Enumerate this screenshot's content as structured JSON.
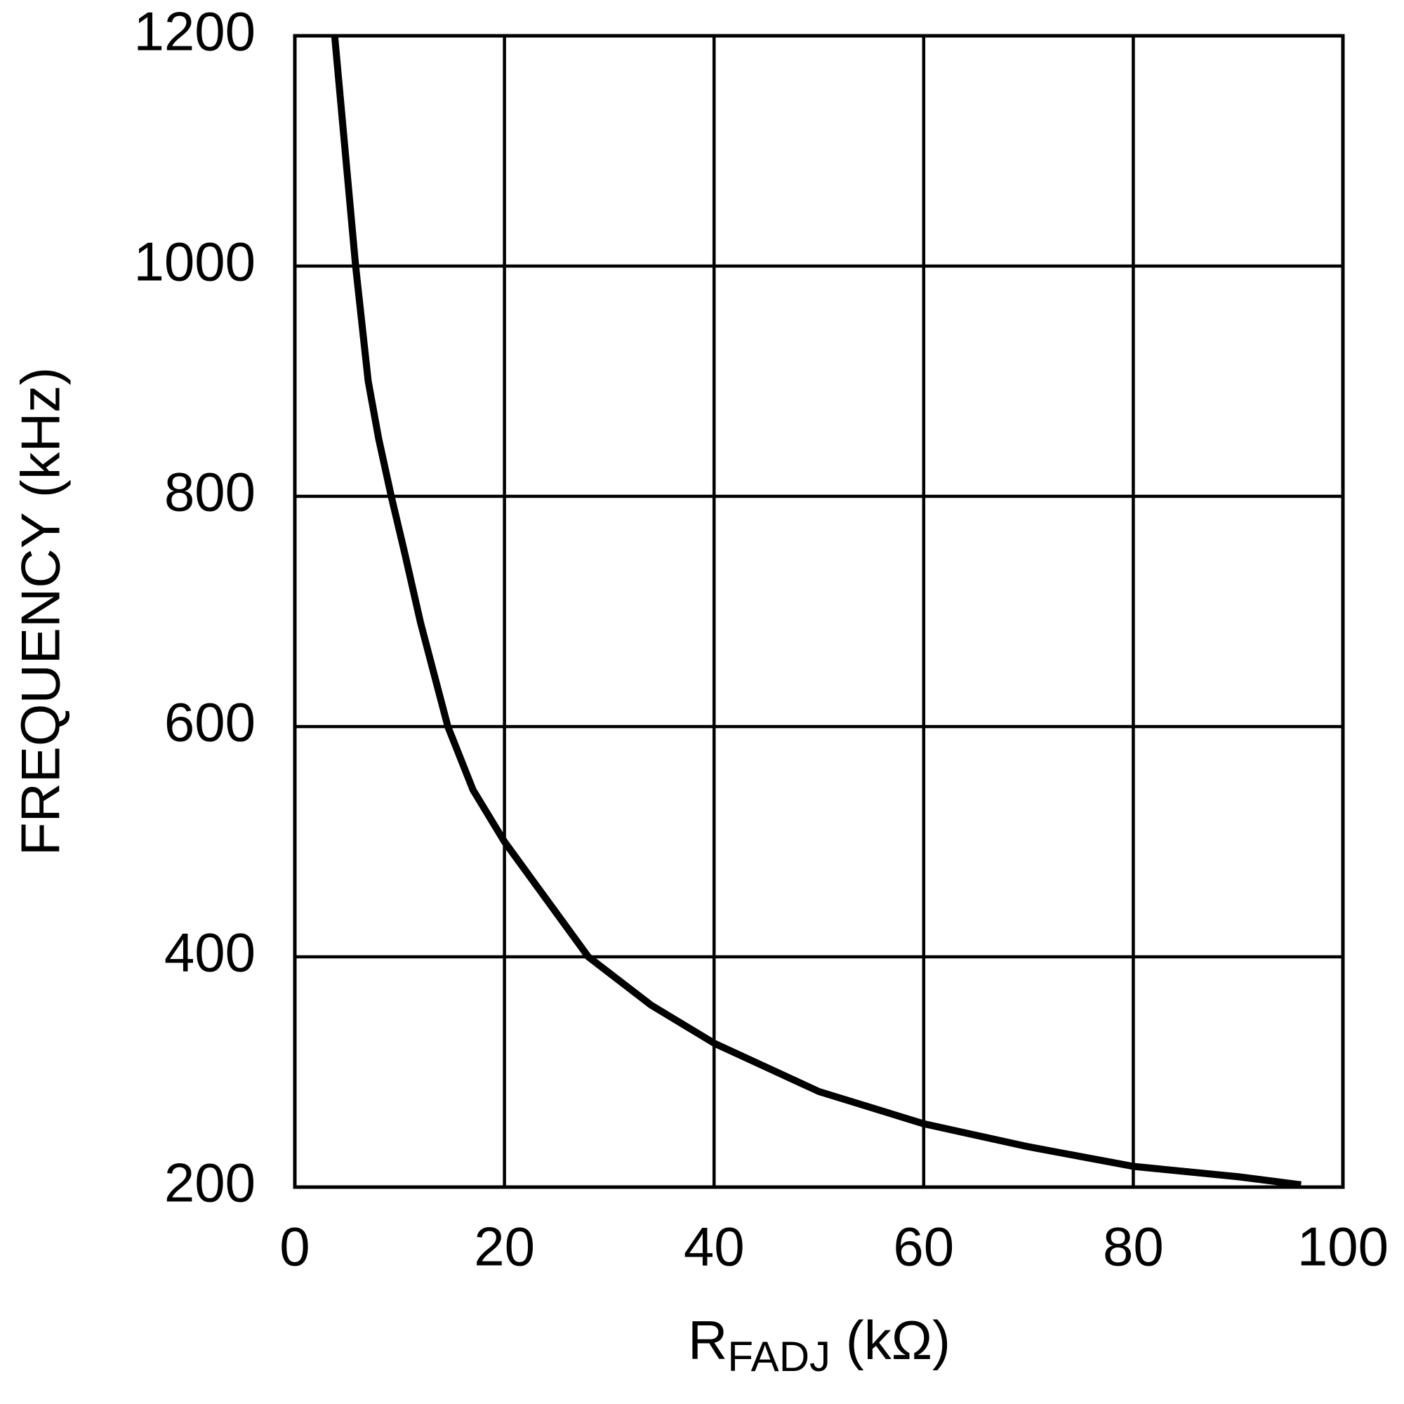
{
  "chart_data": {
    "type": "line",
    "y_label": "FREQUENCY (kHz)",
    "x_label": {
      "main": "R",
      "subscript": "FADJ",
      "suffix": " (kΩ)"
    },
    "xlim": [
      0,
      100
    ],
    "xticks": [
      0,
      20,
      40,
      60,
      80,
      100
    ],
    "ylim": [
      200,
      1200
    ],
    "yticks": [
      200,
      400,
      600,
      800,
      1000,
      1200
    ],
    "grid": true,
    "x": [
      3.8,
      5,
      5.8,
      7,
      8,
      9.2,
      10.5,
      12,
      14.6,
      17,
      20,
      24,
      28,
      34,
      40,
      50,
      60,
      70,
      80,
      90,
      96
    ],
    "series": [
      {
        "color": "#000000",
        "values": [
          1200,
          1080,
          1000,
          900,
          850,
          800,
          750,
          690,
          600,
          545,
          500,
          450,
          400,
          358,
          325,
          283,
          255,
          235,
          218,
          209,
          202
        ]
      }
    ]
  }
}
